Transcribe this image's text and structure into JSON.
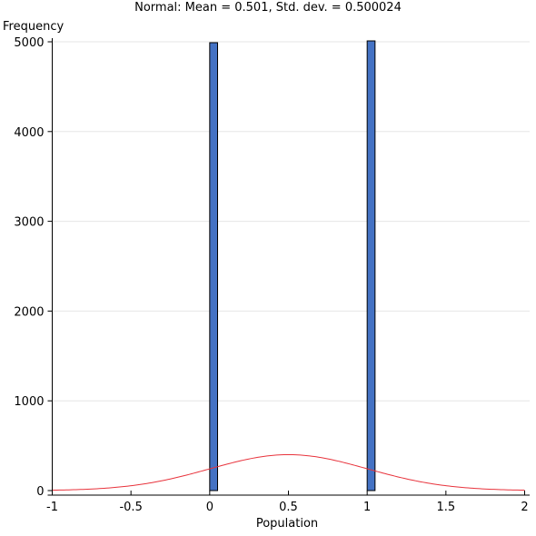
{
  "chart_data": {
    "type": "bar",
    "title": "Normal: Mean = 0.501, Std. dev. = 0.500024",
    "xlabel": "Population",
    "ylabel": "Frequency",
    "xlim": [
      -1,
      2
    ],
    "ylim": [
      0,
      5000
    ],
    "x_ticks": [
      -1,
      -0.5,
      0,
      0.5,
      1,
      1.5,
      2
    ],
    "x_tick_labels": [
      "-1",
      "-0.5",
      "0",
      "0.5",
      "1",
      "1.5",
      "2"
    ],
    "y_ticks": [
      0,
      1000,
      2000,
      3000,
      4000,
      5000
    ],
    "y_tick_labels": [
      "0",
      "1000",
      "2000",
      "3000",
      "4000",
      "5000"
    ],
    "grid": true,
    "bars": [
      {
        "x_start": 0.0,
        "x_end": 0.05,
        "value": 4990
      },
      {
        "x_start": 1.0,
        "x_end": 1.05,
        "value": 5010
      }
    ],
    "normal_curve": {
      "mean": 0.501,
      "std_dev": 0.500024,
      "peak_value": 400,
      "color": "#e8333c"
    },
    "bar_color": "#4472c4"
  }
}
